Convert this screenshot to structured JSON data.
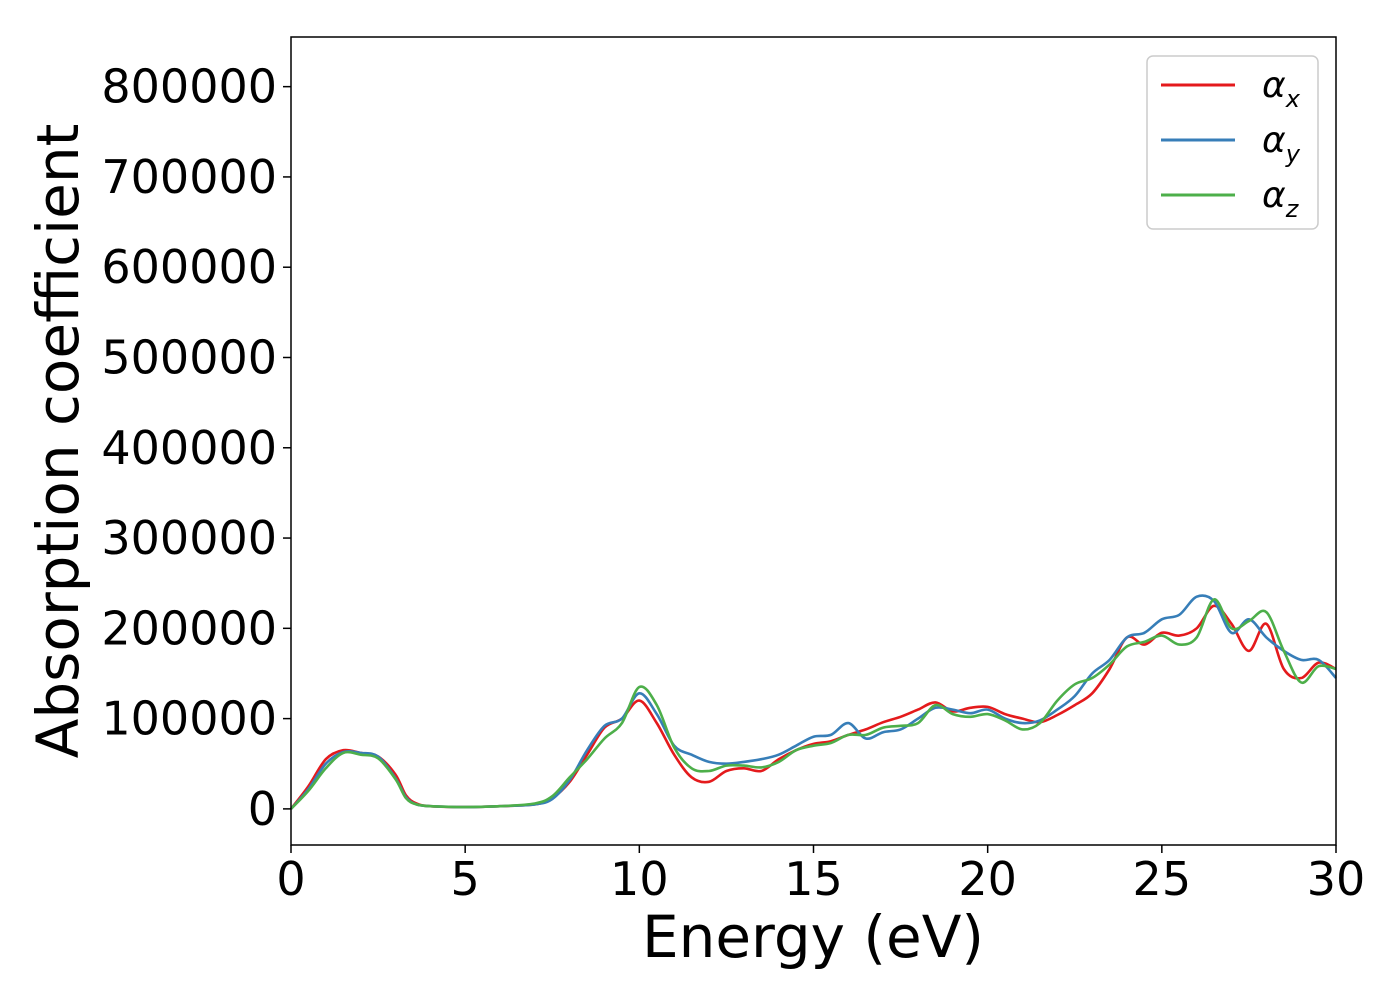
{
  "chart_data": {
    "type": "line",
    "title": "",
    "xlabel": "Energy (eV)",
    "ylabel": "Absorption coefficient",
    "xlim": [
      0,
      30
    ],
    "ylim": [
      -40000,
      855000
    ],
    "xticks": [
      0,
      5,
      10,
      15,
      20,
      25,
      30
    ],
    "yticks": [
      0,
      100000,
      200000,
      300000,
      400000,
      500000,
      600000,
      700000,
      800000
    ],
    "grid": false,
    "legend_position": "top-right",
    "series": [
      {
        "name": "α",
        "subscript": "x",
        "color": "#e41a1c",
        "x": [
          0,
          0.5,
          1,
          1.5,
          2,
          2.5,
          3,
          3.3,
          3.6,
          4,
          5,
          6,
          7,
          7.5,
          8,
          8.5,
          9,
          9.5,
          10,
          10.5,
          11,
          11.5,
          12,
          12.5,
          13,
          13.5,
          14,
          14.5,
          15,
          15.5,
          16,
          16.5,
          17,
          17.5,
          18,
          18.5,
          19,
          19.5,
          20,
          20.5,
          21,
          21.5,
          22,
          22.5,
          23,
          23.5,
          24,
          24.5,
          25,
          25.5,
          26,
          26.5,
          27,
          27.5,
          28,
          28.5,
          29,
          29.5,
          30
        ],
        "y": [
          0,
          25000,
          55000,
          65000,
          62000,
          58000,
          38000,
          15000,
          6000,
          3000,
          2000,
          3000,
          5000,
          12000,
          30000,
          60000,
          90000,
          100000,
          120000,
          95000,
          60000,
          35000,
          30000,
          42000,
          45000,
          42000,
          55000,
          65000,
          72000,
          75000,
          82000,
          88000,
          96000,
          102000,
          110000,
          118000,
          108000,
          112000,
          113000,
          105000,
          100000,
          96000,
          104000,
          115000,
          128000,
          155000,
          190000,
          182000,
          195000,
          192000,
          200000,
          225000,
          205000,
          175000,
          205000,
          155000,
          145000,
          162000,
          155000
        ]
      },
      {
        "name": "α",
        "subscript": "y",
        "color": "#377eb8",
        "x": [
          0,
          0.5,
          1,
          1.5,
          2,
          2.5,
          3,
          3.3,
          3.6,
          4,
          5,
          6,
          7,
          7.5,
          8,
          8.5,
          9,
          9.5,
          10,
          10.5,
          11,
          11.5,
          12,
          12.5,
          13,
          13.5,
          14,
          14.5,
          15,
          15.5,
          16,
          16.5,
          17,
          17.5,
          18,
          18.5,
          19,
          19.5,
          20,
          20.5,
          21,
          21.5,
          22,
          22.5,
          23,
          23.5,
          24,
          24.5,
          25,
          25.5,
          26,
          26.5,
          27,
          27.5,
          28,
          28.5,
          29,
          29.5,
          30
        ],
        "y": [
          0,
          22000,
          50000,
          63000,
          62000,
          58000,
          34000,
          13000,
          5000,
          3000,
          2000,
          3000,
          5000,
          11000,
          32000,
          65000,
          92000,
          100000,
          128000,
          105000,
          70000,
          60000,
          52000,
          50000,
          52000,
          55000,
          60000,
          70000,
          80000,
          82000,
          95000,
          78000,
          85000,
          88000,
          100000,
          112000,
          110000,
          106000,
          110000,
          100000,
          95000,
          98000,
          110000,
          125000,
          150000,
          165000,
          190000,
          195000,
          210000,
          215000,
          235000,
          230000,
          195000,
          210000,
          190000,
          175000,
          165000,
          165000,
          145000
        ]
      },
      {
        "name": "α",
        "subscript": "z",
        "color": "#4daf4a",
        "x": [
          0,
          0.5,
          1,
          1.5,
          2,
          2.5,
          3,
          3.3,
          3.6,
          4,
          5,
          6,
          7,
          7.5,
          8,
          8.5,
          9,
          9.5,
          10,
          10.5,
          11,
          11.5,
          12,
          12.5,
          13,
          13.5,
          14,
          14.5,
          15,
          15.5,
          16,
          16.5,
          17,
          17.5,
          18,
          18.5,
          19,
          19.5,
          20,
          20.5,
          21,
          21.5,
          22,
          22.5,
          23,
          23.5,
          24,
          24.5,
          25,
          25.5,
          26,
          26.5,
          27,
          27.5,
          28,
          28.5,
          29,
          29.5,
          30
        ],
        "y": [
          0,
          20000,
          45000,
          62000,
          60000,
          56000,
          33000,
          12000,
          5000,
          3000,
          2000,
          3000,
          6000,
          14000,
          35000,
          55000,
          78000,
          95000,
          135000,
          115000,
          68000,
          45000,
          42000,
          48000,
          48000,
          46000,
          52000,
          65000,
          70000,
          73000,
          82000,
          82000,
          90000,
          92000,
          95000,
          115000,
          105000,
          102000,
          105000,
          98000,
          88000,
          95000,
          120000,
          138000,
          145000,
          160000,
          180000,
          185000,
          192000,
          182000,
          190000,
          232000,
          200000,
          208000,
          218000,
          175000,
          140000,
          158000,
          155000
        ]
      }
    ]
  }
}
